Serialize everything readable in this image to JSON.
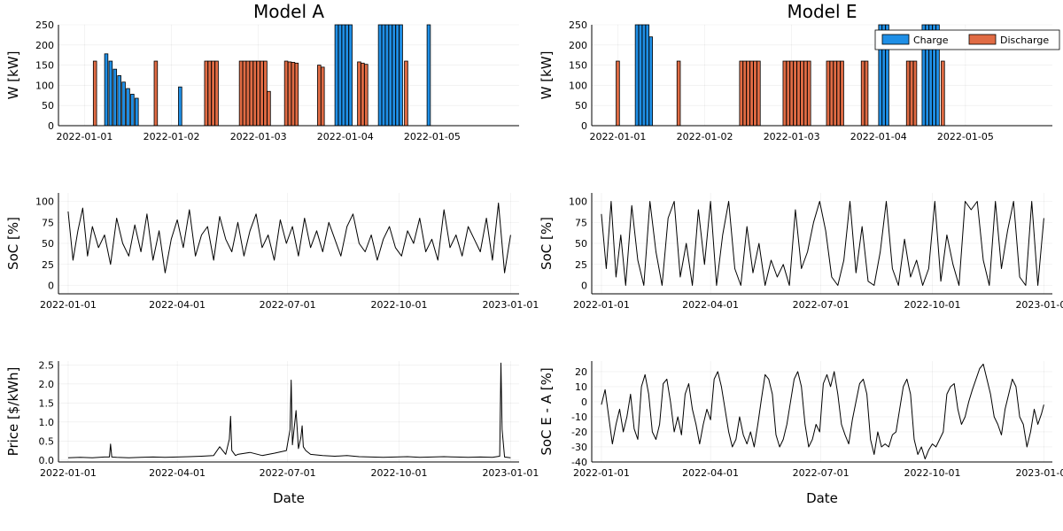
{
  "colors": {
    "charge": "#1f8fe6",
    "discharge": "#e06b44",
    "line": "#000000"
  },
  "chart_data": [
    {
      "id": "a_power",
      "type": "bar",
      "title": "Model A",
      "ylabel": "W [kW]",
      "xlabel": "",
      "ylim": [
        0,
        250
      ],
      "yticks": [
        0,
        50,
        100,
        150,
        200,
        250
      ],
      "xlim": [
        0,
        5.3
      ],
      "xticks": [
        {
          "v": 0.3,
          "label": "2022-01-01"
        },
        {
          "v": 1.3,
          "label": "2022-01-02"
        },
        {
          "v": 2.3,
          "label": "2022-01-03"
        },
        {
          "v": 3.3,
          "label": "2022-01-04"
        },
        {
          "v": 4.3,
          "label": "2022-01-05"
        }
      ],
      "bar_width": 0.038,
      "series": [
        {
          "name": "Charge",
          "x": [
            0.55,
            0.6,
            0.65,
            0.7,
            0.75,
            0.8,
            0.85,
            0.9,
            1.4,
            1.8,
            3.2,
            3.24,
            3.28,
            3.32,
            3.36,
            3.7,
            3.74,
            3.78,
            3.82,
            3.86,
            3.9,
            3.94,
            4.26
          ],
          "values": [
            178,
            160,
            140,
            124,
            108,
            92,
            78,
            68,
            96,
            83,
            250,
            250,
            250,
            250,
            250,
            250,
            250,
            250,
            250,
            250,
            250,
            250,
            250
          ]
        },
        {
          "name": "Discharge",
          "x": [
            0.42,
            1.12,
            1.7,
            1.74,
            1.78,
            1.82,
            2.1,
            2.14,
            2.18,
            2.22,
            2.26,
            2.3,
            2.34,
            2.38,
            2.42,
            2.62,
            2.66,
            2.7,
            2.74,
            3.0,
            3.04,
            3.46,
            3.5,
            3.54,
            4.0
          ],
          "values": [
            160,
            160,
            160,
            160,
            160,
            160,
            160,
            160,
            160,
            160,
            160,
            160,
            160,
            160,
            85,
            160,
            158,
            157,
            155,
            150,
            145,
            158,
            155,
            152,
            160
          ]
        }
      ]
    },
    {
      "id": "e_power",
      "type": "bar",
      "title": "Model E",
      "ylabel": "W [kW]",
      "xlabel": "",
      "ylim": [
        0,
        250
      ],
      "yticks": [
        0,
        50,
        100,
        150,
        200,
        250
      ],
      "xlim": [
        0,
        5.3
      ],
      "xticks": [
        {
          "v": 0.3,
          "label": "2022-01-01"
        },
        {
          "v": 1.3,
          "label": "2022-01-02"
        },
        {
          "v": 2.3,
          "label": "2022-01-03"
        },
        {
          "v": 3.3,
          "label": "2022-01-04"
        },
        {
          "v": 4.3,
          "label": "2022-01-05"
        }
      ],
      "bar_width": 0.038,
      "legend": {
        "position": "top-right",
        "entries": [
          "Charge",
          "Discharge"
        ]
      },
      "series": [
        {
          "name": "Charge",
          "x": [
            0.52,
            0.56,
            0.6,
            0.64,
            0.68,
            3.32,
            3.36,
            3.4,
            3.82,
            3.86,
            3.9,
            3.94,
            3.98
          ],
          "values": [
            250,
            250,
            250,
            250,
            220,
            250,
            250,
            250,
            250,
            250,
            250,
            250,
            250
          ]
        },
        {
          "name": "Discharge",
          "x": [
            0.3,
            1.0,
            1.72,
            1.76,
            1.8,
            1.84,
            1.88,
            1.92,
            2.22,
            2.26,
            2.3,
            2.34,
            2.38,
            2.42,
            2.46,
            2.5,
            2.72,
            2.76,
            2.8,
            2.84,
            2.88,
            3.12,
            3.16,
            3.64,
            3.68,
            3.72,
            4.04
          ],
          "values": [
            160,
            160,
            160,
            160,
            160,
            160,
            160,
            160,
            160,
            160,
            160,
            160,
            160,
            160,
            160,
            160,
            160,
            160,
            160,
            160,
            160,
            160,
            160,
            160,
            160,
            160,
            160
          ]
        }
      ]
    },
    {
      "id": "a_soc",
      "type": "line",
      "title": "",
      "ylabel": "SoC [%]",
      "xlabel": "",
      "ylim": [
        -10,
        110
      ],
      "yticks": [
        0,
        25,
        50,
        75,
        100
      ],
      "xlim": [
        -8,
        372
      ],
      "xticks": [
        {
          "v": 0,
          "label": "2022-01-01"
        },
        {
          "v": 90,
          "label": "2022-04-01"
        },
        {
          "v": 181,
          "label": "2022-07-01"
        },
        {
          "v": 273,
          "label": "2022-10-01"
        },
        {
          "v": 365,
          "label": "2023-01-01"
        }
      ],
      "series": [
        {
          "name": "SoC A",
          "x": [
            0,
            4,
            8,
            12,
            16,
            20,
            25,
            30,
            35,
            40,
            45,
            50,
            55,
            60,
            65,
            70,
            75,
            80,
            85,
            90,
            95,
            100,
            105,
            110,
            115,
            120,
            125,
            130,
            135,
            140,
            145,
            150,
            155,
            160,
            165,
            170,
            175,
            180,
            185,
            190,
            195,
            200,
            205,
            210,
            215,
            220,
            225,
            230,
            235,
            240,
            245,
            250,
            255,
            260,
            265,
            270,
            275,
            280,
            285,
            290,
            295,
            300,
            305,
            310,
            315,
            320,
            325,
            330,
            335,
            340,
            345,
            350,
            355,
            360,
            365
          ],
          "values": [
            88,
            30,
            65,
            92,
            35,
            70,
            45,
            60,
            25,
            80,
            50,
            35,
            72,
            40,
            85,
            30,
            65,
            15,
            55,
            78,
            45,
            90,
            35,
            60,
            70,
            30,
            82,
            55,
            40,
            75,
            35,
            65,
            85,
            45,
            60,
            30,
            78,
            50,
            70,
            35,
            80,
            45,
            65,
            40,
            75,
            55,
            35,
            70,
            85,
            50,
            40,
            60,
            30,
            55,
            70,
            45,
            35,
            65,
            50,
            80,
            40,
            55,
            30,
            90,
            45,
            60,
            35,
            70,
            55,
            40,
            80,
            30,
            98,
            15,
            60
          ]
        }
      ]
    },
    {
      "id": "e_soc",
      "type": "line",
      "title": "",
      "ylabel": "SoC [%]",
      "xlabel": "",
      "ylim": [
        -10,
        110
      ],
      "yticks": [
        0,
        25,
        50,
        75,
        100
      ],
      "xlim": [
        -8,
        372
      ],
      "xticks": [
        {
          "v": 0,
          "label": "2022-01-01"
        },
        {
          "v": 90,
          "label": "2022-04-01"
        },
        {
          "v": 181,
          "label": "2022-07-01"
        },
        {
          "v": 273,
          "label": "2022-10-01"
        },
        {
          "v": 365,
          "label": "2023-01-01"
        }
      ],
      "series": [
        {
          "name": "SoC E",
          "x": [
            0,
            4,
            8,
            12,
            16,
            20,
            25,
            30,
            35,
            40,
            45,
            50,
            55,
            60,
            65,
            70,
            75,
            80,
            85,
            90,
            95,
            100,
            105,
            110,
            115,
            120,
            125,
            130,
            135,
            140,
            145,
            150,
            155,
            160,
            165,
            170,
            175,
            180,
            185,
            190,
            195,
            200,
            205,
            210,
            215,
            220,
            225,
            230,
            235,
            240,
            245,
            250,
            255,
            260,
            265,
            270,
            275,
            280,
            285,
            290,
            295,
            300,
            305,
            310,
            315,
            320,
            325,
            330,
            335,
            340,
            345,
            350,
            355,
            360,
            365
          ],
          "values": [
            85,
            20,
            100,
            10,
            60,
            0,
            95,
            30,
            0,
            100,
            40,
            0,
            80,
            100,
            10,
            50,
            0,
            90,
            25,
            100,
            0,
            60,
            100,
            20,
            0,
            70,
            15,
            50,
            0,
            30,
            10,
            25,
            0,
            90,
            20,
            40,
            75,
            100,
            65,
            10,
            0,
            30,
            100,
            15,
            70,
            5,
            0,
            40,
            100,
            20,
            0,
            55,
            10,
            30,
            0,
            20,
            100,
            5,
            60,
            25,
            0,
            100,
            90,
            100,
            30,
            0,
            100,
            20,
            65,
            100,
            10,
            0,
            100,
            0,
            80
          ]
        }
      ]
    },
    {
      "id": "a_price",
      "type": "line",
      "title": "",
      "ylabel": "Price [$/kWh]",
      "xlabel": "Date",
      "ylim": [
        -0.05,
        2.6
      ],
      "yticks": [
        0.0,
        0.5,
        1.0,
        1.5,
        2.0,
        2.5
      ],
      "ytick_labels": [
        "0.0",
        "0.5",
        "1.0",
        "1.5",
        "2.0",
        "2.5"
      ],
      "xlim": [
        -8,
        372
      ],
      "xticks": [
        {
          "v": 0,
          "label": "2022-01-01"
        },
        {
          "v": 90,
          "label": "2022-04-01"
        },
        {
          "v": 181,
          "label": "2022-07-01"
        },
        {
          "v": 273,
          "label": "2022-10-01"
        },
        {
          "v": 365,
          "label": "2023-01-01"
        }
      ],
      "series": [
        {
          "name": "Price",
          "x": [
            0,
            10,
            20,
            30,
            34,
            35,
            36,
            40,
            50,
            60,
            70,
            80,
            90,
            100,
            110,
            120,
            125,
            130,
            133,
            134,
            135,
            138,
            140,
            150,
            160,
            170,
            180,
            183,
            184,
            185,
            188,
            190,
            192,
            193,
            194,
            196,
            200,
            210,
            220,
            230,
            240,
            250,
            260,
            270,
            280,
            290,
            300,
            310,
            320,
            330,
            340,
            350,
            356,
            357,
            358,
            360,
            365
          ],
          "values": [
            0.06,
            0.07,
            0.06,
            0.08,
            0.08,
            0.42,
            0.08,
            0.07,
            0.06,
            0.07,
            0.08,
            0.07,
            0.08,
            0.09,
            0.1,
            0.12,
            0.35,
            0.15,
            0.55,
            1.15,
            0.25,
            0.12,
            0.15,
            0.2,
            0.12,
            0.18,
            0.25,
            0.8,
            2.1,
            0.4,
            1.3,
            0.3,
            0.6,
            0.9,
            0.35,
            0.25,
            0.15,
            0.12,
            0.1,
            0.12,
            0.09,
            0.08,
            0.07,
            0.08,
            0.09,
            0.07,
            0.08,
            0.09,
            0.08,
            0.07,
            0.08,
            0.07,
            0.1,
            2.55,
            0.8,
            0.08,
            0.06
          ]
        }
      ]
    },
    {
      "id": "diff_soc",
      "type": "line",
      "title": "",
      "ylabel": "SoC E - A [%]",
      "xlabel": "Date",
      "ylim": [
        -40,
        27
      ],
      "yticks": [
        -40,
        -30,
        -20,
        -10,
        0,
        10,
        20
      ],
      "xlim": [
        -8,
        372
      ],
      "xticks": [
        {
          "v": 0,
          "label": "2022-01-01"
        },
        {
          "v": 90,
          "label": "2022-04-01"
        },
        {
          "v": 181,
          "label": "2022-07-01"
        },
        {
          "v": 273,
          "label": "2022-10-01"
        },
        {
          "v": 365,
          "label": "2023-01-01"
        }
      ],
      "series": [
        {
          "name": "SoC E - A",
          "x": [
            0,
            3,
            6,
            9,
            12,
            15,
            18,
            21,
            24,
            27,
            30,
            33,
            36,
            39,
            42,
            45,
            48,
            51,
            54,
            57,
            60,
            63,
            66,
            69,
            72,
            75,
            78,
            81,
            84,
            87,
            90,
            93,
            96,
            99,
            102,
            105,
            108,
            111,
            114,
            117,
            120,
            123,
            126,
            129,
            132,
            135,
            138,
            141,
            144,
            147,
            150,
            153,
            156,
            159,
            162,
            165,
            168,
            171,
            174,
            177,
            180,
            183,
            186,
            189,
            192,
            195,
            198,
            201,
            204,
            207,
            210,
            213,
            216,
            219,
            222,
            225,
            228,
            231,
            234,
            237,
            240,
            243,
            246,
            249,
            252,
            255,
            258,
            261,
            264,
            267,
            270,
            273,
            276,
            279,
            282,
            285,
            288,
            291,
            294,
            297,
            300,
            303,
            306,
            309,
            312,
            315,
            318,
            321,
            324,
            327,
            330,
            333,
            336,
            339,
            342,
            345,
            348,
            351,
            354,
            357,
            360,
            363,
            365
          ],
          "values": [
            -2,
            8,
            -10,
            -28,
            -15,
            -5,
            -20,
            -10,
            5,
            -18,
            -25,
            10,
            18,
            5,
            -20,
            -25,
            -15,
            12,
            15,
            0,
            -20,
            -10,
            -22,
            5,
            12,
            -5,
            -15,
            -28,
            -15,
            -5,
            -12,
            15,
            20,
            10,
            -5,
            -20,
            -30,
            -25,
            -10,
            -22,
            -28,
            -20,
            -30,
            -15,
            2,
            18,
            15,
            5,
            -22,
            -30,
            -25,
            -15,
            0,
            15,
            20,
            10,
            -15,
            -30,
            -25,
            -15,
            -20,
            12,
            18,
            10,
            20,
            5,
            -15,
            -22,
            -28,
            -12,
            0,
            12,
            15,
            5,
            -25,
            -35,
            -20,
            -30,
            -28,
            -30,
            -22,
            -20,
            -5,
            10,
            15,
            5,
            -25,
            -35,
            -30,
            -38,
            -32,
            -28,
            -30,
            -25,
            -20,
            5,
            10,
            12,
            -5,
            -15,
            -10,
            0,
            8,
            15,
            22,
            25,
            15,
            5,
            -10,
            -15,
            -22,
            -5,
            5,
            15,
            10,
            -10,
            -15,
            -30,
            -20,
            -5,
            -15,
            -8,
            -2
          ]
        }
      ]
    }
  ]
}
